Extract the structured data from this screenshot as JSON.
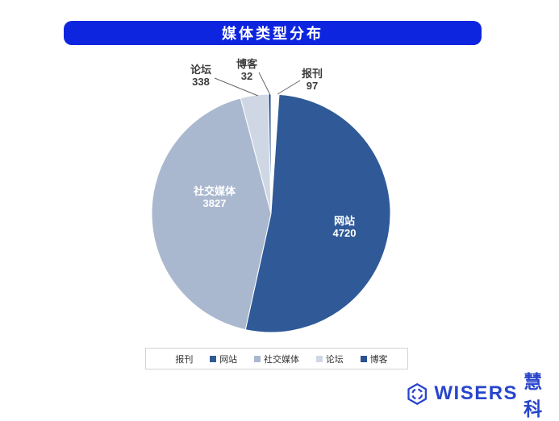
{
  "title": "媒体类型分布",
  "colors": {
    "title_bar": "#0e25df",
    "title_text": "#ffffff",
    "leader_line": "#666666",
    "legend_border": "#d2d2d2",
    "brand_blue": "#2845cb"
  },
  "chart_data": {
    "type": "pie",
    "title": "媒体类型分布",
    "direction": "clockwise",
    "start_angle": "12-oclock",
    "legend_position": "bottom",
    "series": [
      {
        "name": "报刊",
        "value": 97,
        "color": "#ffffff",
        "label_position": "outside"
      },
      {
        "name": "网站",
        "value": 4720,
        "color": "#2f5a97",
        "label_position": "inside"
      },
      {
        "name": "社交媒体",
        "value": 3827,
        "color": "#aab8cf",
        "label_position": "inside"
      },
      {
        "name": "论坛",
        "value": 338,
        "color": "#cfd7e5",
        "label_position": "outside"
      },
      {
        "name": "博客",
        "value": 32,
        "color": "#2a5190",
        "label_position": "outside"
      }
    ]
  },
  "legend": {
    "items": [
      {
        "label": "报刊",
        "color": "#ffffff"
      },
      {
        "label": "网站",
        "color": "#2f5a97"
      },
      {
        "label": "社交媒体",
        "color": "#aab8cf"
      },
      {
        "label": "论坛",
        "color": "#cfd7e5"
      },
      {
        "label": "博客",
        "color": "#2a5190"
      }
    ]
  },
  "branding": {
    "name_en": "WISERS",
    "name_cn": "慧科",
    "color": "#2845cb"
  }
}
